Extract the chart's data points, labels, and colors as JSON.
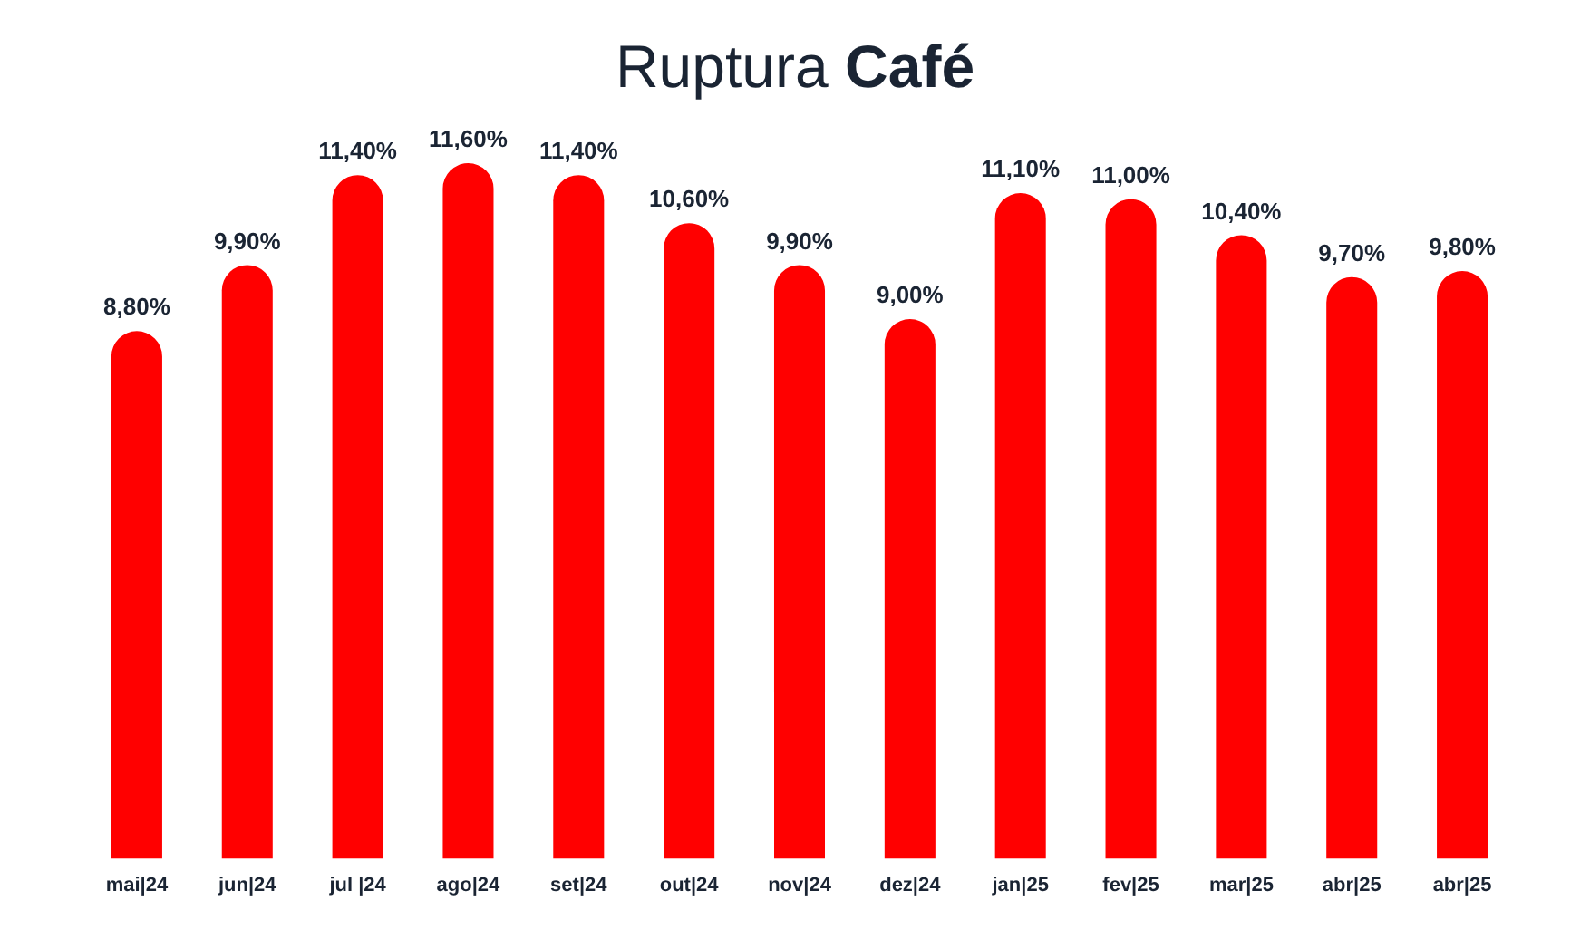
{
  "chart_data": {
    "type": "bar",
    "title": "Ruptura Café",
    "categories": [
      "mai|24",
      "jun|24",
      "jul |24",
      "ago|24",
      "set|24",
      "out|24",
      "nov|24",
      "dez|24",
      "jan|25",
      "fev|25",
      "mar|25",
      "abr|25",
      "abr|25"
    ],
    "values": [
      8.8,
      9.9,
      11.4,
      11.6,
      11.4,
      10.6,
      9.9,
      9.0,
      11.1,
      11.0,
      10.4,
      9.7,
      9.8
    ],
    "value_labels": [
      "8,80%",
      "9,90%",
      "11,40%",
      "11,60%",
      "11,40%",
      "10,60%",
      "9,90%",
      "9,00%",
      "11,10%",
      "11,00%",
      "10,40%",
      "9,70%",
      "9,80%"
    ],
    "color": "#ff0000",
    "grid": false,
    "legend": false
  }
}
